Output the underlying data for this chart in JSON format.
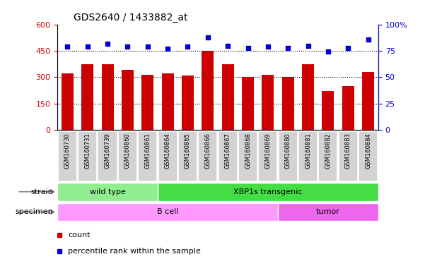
{
  "title": "GDS2640 / 1433882_at",
  "samples": [
    "GSM160730",
    "GSM160731",
    "GSM160739",
    "GSM160860",
    "GSM160861",
    "GSM160864",
    "GSM160865",
    "GSM160866",
    "GSM160867",
    "GSM160868",
    "GSM160869",
    "GSM160880",
    "GSM160881",
    "GSM160882",
    "GSM160883",
    "GSM160884"
  ],
  "counts": [
    320,
    375,
    375,
    340,
    315,
    320,
    310,
    450,
    375,
    300,
    315,
    300,
    375,
    220,
    250,
    330
  ],
  "percentiles": [
    79,
    79,
    82,
    79,
    79,
    77,
    79,
    88,
    80,
    78,
    79,
    78,
    80,
    74,
    78,
    86
  ],
  "strain_groups": [
    {
      "label": "wild type",
      "start": 0,
      "end": 5,
      "color": "#90EE90"
    },
    {
      "label": "XBP1s transgenic",
      "start": 5,
      "end": 16,
      "color": "#44DD44"
    }
  ],
  "specimen_groups": [
    {
      "label": "B cell",
      "start": 0,
      "end": 11,
      "color": "#FF99FF"
    },
    {
      "label": "tumor",
      "start": 11,
      "end": 16,
      "color": "#EE66EE"
    }
  ],
  "bar_color": "#CC0000",
  "dot_color": "#0000CC",
  "ylim_left": [
    0,
    600
  ],
  "ylim_right": [
    0,
    100
  ],
  "yticks_left": [
    0,
    150,
    300,
    450,
    600
  ],
  "yticks_right": [
    0,
    25,
    50,
    75,
    100
  ],
  "grid_values": [
    150,
    300,
    450
  ]
}
